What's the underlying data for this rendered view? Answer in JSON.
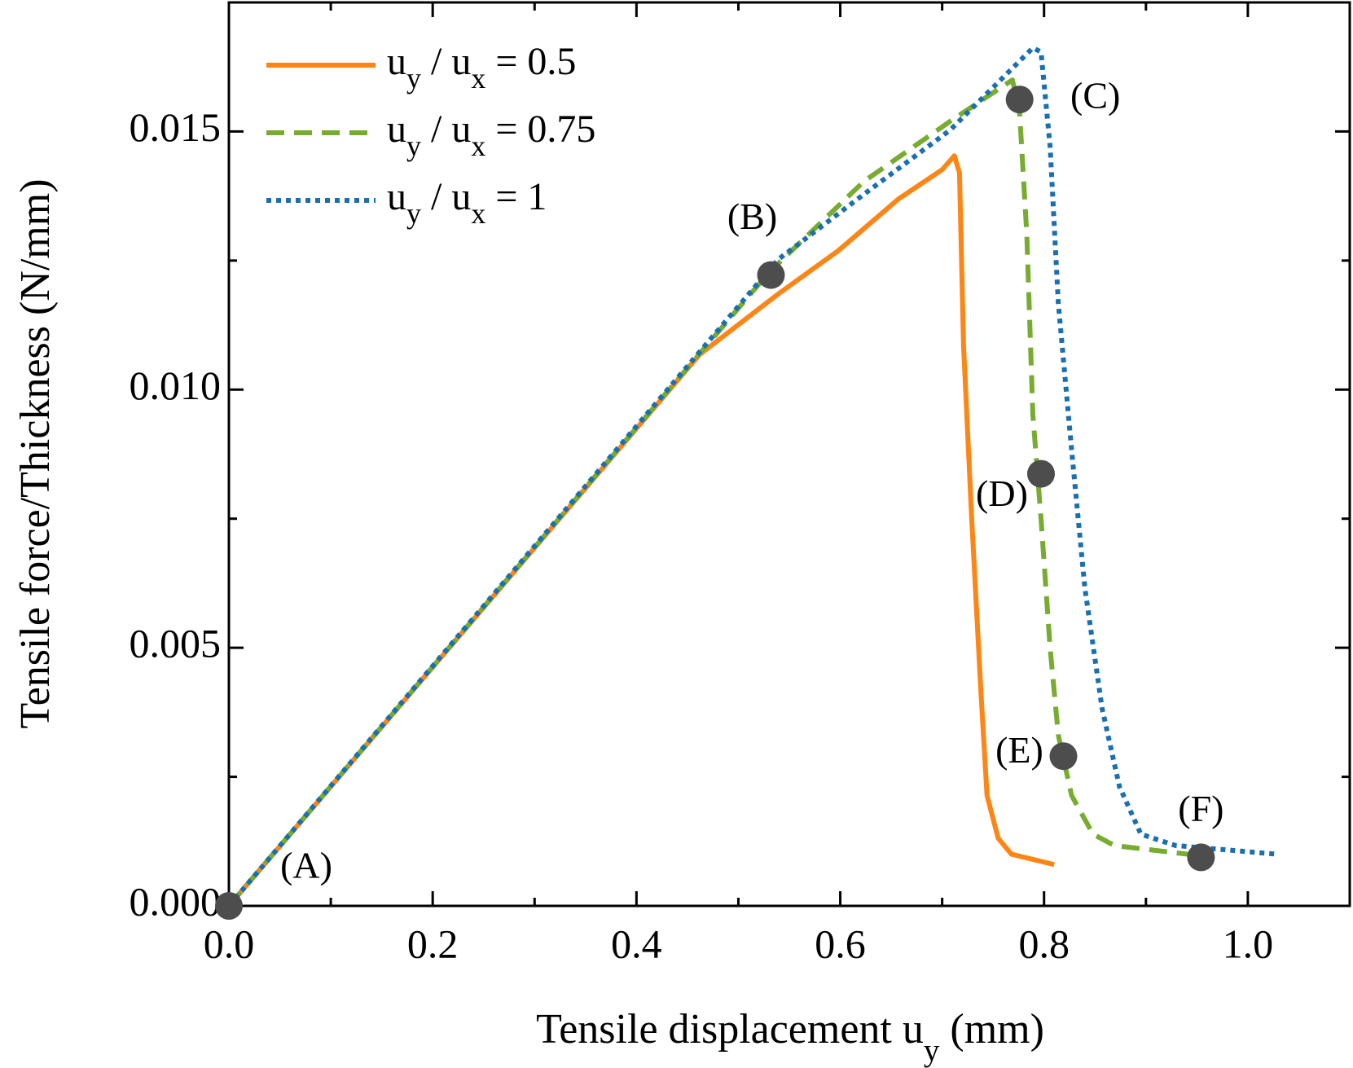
{
  "chart_data": {
    "type": "line",
    "xlabel": "Tensile displacement uy (mm)",
    "ylabel": "Tensile force/Thickness (N/mm)",
    "xlim": [
      0,
      1.1
    ],
    "ylim": [
      0,
      0.0175
    ],
    "xticks": [
      {
        "value": 0,
        "label": "0.0"
      },
      0.2,
      0.4,
      0.6,
      0.8,
      {
        "value": 1,
        "label": "1.0"
      }
    ],
    "xminorticks": [
      0.1,
      0.3,
      0.5,
      0.7,
      0.9
    ],
    "yticks": [
      {
        "value": 0,
        "label": "0.000"
      },
      {
        "value": 0.005,
        "label": "0.005"
      },
      {
        "value": 0.01,
        "label": "0.010"
      },
      {
        "value": 0.015,
        "label": "0.015"
      }
    ],
    "yminorticks": [
      0.0025,
      0.0075,
      0.0125
    ],
    "legend": "upper left",
    "series": [
      {
        "name": "uy / ux = 0.5",
        "color": "#ff8514",
        "linestyle": "solid",
        "x": [
          0,
          0.462,
          0.539,
          0.598,
          0.657,
          0.7,
          0.712,
          0.717,
          0.721,
          0.729,
          0.738,
          0.744,
          0.755,
          0.768,
          0.81
        ],
        "values": [
          0,
          0.01068,
          0.01185,
          0.01269,
          0.01369,
          0.01426,
          0.01453,
          0.0142,
          0.01085,
          0.0075,
          0.00415,
          0.00214,
          0.00131,
          0.001,
          0.0008
        ]
      },
      {
        "name": "uy / ux = 0.75",
        "color": "#77ac30",
        "linestyle": "dashed",
        "x": [
          0,
          0.53,
          0.623,
          0.708,
          0.769,
          0.776,
          0.783,
          0.789,
          0.797,
          0.806,
          0.814,
          0.827,
          0.848,
          0.869,
          0.954
        ],
        "values": [
          0,
          0.01227,
          0.01403,
          0.0152,
          0.016,
          0.01537,
          0.01302,
          0.00951,
          0.0075,
          0.00499,
          0.00331,
          0.00214,
          0.00139,
          0.00117,
          0.00097
        ]
      },
      {
        "name": "uy / ux = 1",
        "color": "#1a6fb0",
        "linestyle": "dotted",
        "x": [
          0,
          0.539,
          0.623,
          0.708,
          0.789,
          0.797,
          0.806,
          0.814,
          0.827,
          0.84,
          0.857,
          0.874,
          0.895,
          0.929,
          1.029
        ],
        "values": [
          0,
          0.01252,
          0.01378,
          0.01503,
          0.01662,
          0.01654,
          0.0147,
          0.01168,
          0.00884,
          0.00616,
          0.00382,
          0.00231,
          0.00139,
          0.00117,
          0.001
        ]
      }
    ],
    "annotations": [
      {
        "label": "(A)",
        "x": 0,
        "y": 0
      },
      {
        "label": "(B)",
        "x": 0.532,
        "y": 0.01222
      },
      {
        "label": "(C)",
        "x": 0.776,
        "y": 0.01562
      },
      {
        "label": "(D)",
        "x": 0.797,
        "y": 0.00837
      },
      {
        "label": "(E)",
        "x": 0.819,
        "y": 0.0029
      },
      {
        "label": "(F)",
        "x": 0.954,
        "y": 0.00094
      }
    ],
    "marker_color": "#4d4d4d"
  }
}
